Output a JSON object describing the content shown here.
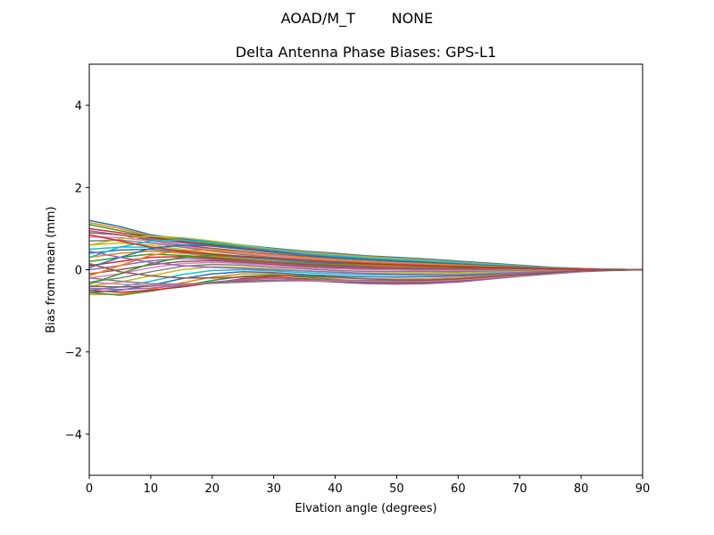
{
  "suptitle": "AOAD/M_T        NONE",
  "chart_data": {
    "type": "line",
    "title": "Delta Antenna Phase Biases: GPS-L1",
    "xlabel": "Elvation angle (degrees)",
    "ylabel": "Bias from mean (mm)",
    "xlim": [
      0,
      90
    ],
    "ylim": [
      -5,
      5
    ],
    "xticks": [
      0,
      10,
      20,
      30,
      40,
      50,
      60,
      70,
      80,
      90
    ],
    "yticks": [
      -4,
      -2,
      0,
      2,
      4
    ],
    "grid": false,
    "legend": "none",
    "x": [
      0,
      5,
      10,
      15,
      20,
      25,
      30,
      35,
      40,
      45,
      50,
      55,
      60,
      65,
      70,
      75,
      80,
      85,
      90
    ],
    "colors": [
      "#1f77b4",
      "#ff7f0e",
      "#2ca02c",
      "#d62728",
      "#9467bd",
      "#8c564b",
      "#e377c2",
      "#7f7f7f",
      "#bcbd22",
      "#17becf"
    ],
    "series": [
      {
        "values": [
          1.2,
          1.05,
          0.85,
          0.75,
          0.68,
          0.6,
          0.52,
          0.45,
          0.4,
          0.34,
          0.3,
          0.26,
          0.21,
          0.16,
          0.11,
          0.06,
          0.03,
          0.01,
          0.0
        ]
      },
      {
        "values": [
          1.15,
          1.0,
          0.82,
          0.72,
          0.65,
          0.57,
          0.5,
          0.43,
          0.38,
          0.32,
          0.28,
          0.24,
          0.19,
          0.14,
          0.1,
          0.05,
          0.03,
          0.01,
          0.0
        ]
      },
      {
        "values": [
          1.1,
          0.95,
          0.8,
          0.7,
          0.62,
          0.55,
          0.48,
          0.41,
          0.36,
          0.3,
          0.26,
          0.22,
          0.18,
          0.13,
          0.09,
          0.05,
          0.02,
          0.01,
          0.0
        ]
      },
      {
        "values": [
          1.0,
          0.9,
          0.78,
          0.68,
          0.6,
          0.52,
          0.45,
          0.39,
          0.34,
          0.29,
          0.25,
          0.21,
          0.17,
          0.12,
          0.08,
          0.04,
          0.02,
          0.01,
          0.0
        ]
      },
      {
        "values": [
          0.95,
          0.85,
          0.75,
          0.65,
          0.57,
          0.5,
          0.43,
          0.37,
          0.32,
          0.27,
          0.23,
          0.19,
          0.15,
          0.11,
          0.07,
          0.04,
          0.02,
          0.0,
          0.0
        ]
      },
      {
        "values": [
          0.9,
          0.85,
          0.72,
          0.6,
          0.52,
          0.45,
          0.38,
          0.32,
          0.28,
          0.24,
          0.2,
          0.16,
          0.13,
          0.09,
          0.06,
          0.03,
          0.01,
          0.0,
          0.0
        ]
      },
      {
        "values": [
          0.8,
          0.78,
          0.7,
          0.58,
          0.48,
          0.4,
          0.34,
          0.28,
          0.24,
          0.2,
          0.17,
          0.14,
          0.11,
          0.08,
          0.05,
          0.03,
          0.01,
          0.0,
          0.0
        ]
      },
      {
        "values": [
          0.7,
          0.72,
          0.65,
          0.55,
          0.45,
          0.37,
          0.3,
          0.25,
          0.21,
          0.18,
          0.15,
          0.12,
          0.1,
          0.07,
          0.05,
          0.02,
          0.01,
          0.0,
          0.0
        ]
      },
      {
        "values": [
          0.6,
          0.65,
          0.6,
          0.5,
          0.4,
          0.33,
          0.27,
          0.22,
          0.18,
          0.15,
          0.12,
          0.1,
          0.08,
          0.06,
          0.04,
          0.02,
          0.01,
          0.0,
          0.0
        ]
      },
      {
        "values": [
          0.5,
          0.55,
          0.55,
          0.46,
          0.37,
          0.3,
          0.24,
          0.19,
          0.16,
          0.13,
          0.1,
          0.08,
          0.07,
          0.05,
          0.03,
          0.02,
          0.01,
          0.0,
          0.0
        ]
      },
      {
        "values": [
          0.4,
          0.48,
          0.5,
          0.42,
          0.34,
          0.27,
          0.21,
          0.17,
          0.14,
          0.11,
          0.09,
          0.07,
          0.05,
          0.04,
          0.03,
          0.01,
          0.01,
          0.0,
          0.0
        ]
      },
      {
        "values": [
          0.3,
          0.4,
          0.45,
          0.4,
          0.33,
          0.26,
          0.2,
          0.15,
          0.12,
          0.1,
          0.08,
          0.06,
          0.05,
          0.03,
          0.02,
          0.01,
          0.0,
          0.0,
          0.0
        ]
      },
      {
        "values": [
          0.2,
          0.3,
          0.38,
          0.35,
          0.3,
          0.24,
          0.18,
          0.14,
          0.11,
          0.08,
          0.06,
          0.05,
          0.04,
          0.03,
          0.02,
          0.01,
          0.0,
          0.0,
          0.0
        ]
      },
      {
        "values": [
          0.1,
          0.2,
          0.3,
          0.32,
          0.28,
          0.22,
          0.17,
          0.12,
          0.09,
          0.07,
          0.05,
          0.04,
          0.03,
          0.02,
          0.01,
          0.01,
          0.0,
          0.0,
          0.0
        ]
      },
      {
        "values": [
          0.0,
          0.1,
          0.22,
          0.27,
          0.25,
          0.2,
          0.15,
          0.1,
          0.07,
          0.05,
          0.04,
          0.03,
          0.02,
          0.01,
          0.01,
          0.0,
          0.0,
          0.0,
          0.0
        ]
      },
      {
        "values": [
          -0.1,
          0.0,
          0.12,
          0.2,
          0.22,
          0.18,
          0.12,
          0.08,
          0.05,
          0.03,
          0.02,
          0.01,
          0.01,
          0.0,
          0.0,
          0.0,
          0.0,
          0.0,
          0.0
        ]
      },
      {
        "values": [
          -0.2,
          -0.1,
          0.05,
          0.15,
          0.18,
          0.15,
          0.1,
          0.05,
          0.02,
          0.0,
          -0.01,
          -0.02,
          -0.02,
          -0.02,
          -0.01,
          -0.01,
          0.0,
          0.0,
          0.0
        ]
      },
      {
        "values": [
          -0.3,
          -0.2,
          -0.05,
          0.08,
          0.13,
          0.11,
          0.06,
          0.02,
          -0.02,
          -0.04,
          -0.05,
          -0.05,
          -0.05,
          -0.04,
          -0.03,
          -0.02,
          -0.01,
          0.0,
          0.0
        ]
      },
      {
        "values": [
          -0.4,
          -0.3,
          -0.15,
          0.0,
          0.07,
          0.06,
          0.02,
          -0.03,
          -0.06,
          -0.08,
          -0.09,
          -0.09,
          -0.08,
          -0.06,
          -0.05,
          -0.03,
          -0.01,
          0.0,
          0.0
        ]
      },
      {
        "values": [
          -0.5,
          -0.42,
          -0.28,
          -0.12,
          -0.02,
          0.0,
          -0.03,
          -0.07,
          -0.1,
          -0.12,
          -0.13,
          -0.13,
          -0.12,
          -0.09,
          -0.07,
          -0.04,
          -0.02,
          -0.01,
          0.0
        ]
      },
      {
        "values": [
          -0.55,
          -0.5,
          -0.38,
          -0.22,
          -0.1,
          -0.05,
          -0.07,
          -0.12,
          -0.15,
          -0.17,
          -0.18,
          -0.17,
          -0.15,
          -0.12,
          -0.09,
          -0.05,
          -0.02,
          -0.01,
          0.0
        ]
      },
      {
        "values": [
          -0.6,
          -0.6,
          -0.48,
          -0.32,
          -0.18,
          -0.1,
          -0.1,
          -0.15,
          -0.2,
          -0.22,
          -0.23,
          -0.22,
          -0.19,
          -0.15,
          -0.11,
          -0.07,
          -0.03,
          -0.01,
          0.0
        ]
      },
      {
        "values": [
          -0.55,
          -0.62,
          -0.52,
          -0.4,
          -0.26,
          -0.16,
          -0.13,
          -0.18,
          -0.24,
          -0.28,
          -0.3,
          -0.28,
          -0.24,
          -0.19,
          -0.13,
          -0.08,
          -0.04,
          -0.01,
          0.0
        ]
      },
      {
        "values": [
          -0.5,
          -0.55,
          -0.5,
          -0.42,
          -0.32,
          -0.22,
          -0.18,
          -0.22,
          -0.27,
          -0.32,
          -0.34,
          -0.33,
          -0.28,
          -0.22,
          -0.15,
          -0.09,
          -0.04,
          -0.01,
          0.0
        ]
      },
      {
        "values": [
          -0.45,
          -0.48,
          -0.45,
          -0.38,
          -0.3,
          -0.25,
          -0.22,
          -0.25,
          -0.3,
          -0.34,
          -0.35,
          -0.34,
          -0.3,
          -0.23,
          -0.16,
          -0.1,
          -0.05,
          -0.02,
          0.0
        ]
      },
      {
        "values": [
          -0.4,
          -0.42,
          -0.4,
          -0.35,
          -0.32,
          -0.28,
          -0.26,
          -0.27,
          -0.29,
          -0.31,
          -0.32,
          -0.31,
          -0.27,
          -0.21,
          -0.15,
          -0.09,
          -0.04,
          -0.01,
          0.0
        ]
      },
      {
        "values": [
          -0.3,
          -0.35,
          -0.38,
          -0.36,
          -0.33,
          -0.3,
          -0.28,
          -0.27,
          -0.27,
          -0.28,
          -0.29,
          -0.28,
          -0.25,
          -0.2,
          -0.14,
          -0.08,
          -0.04,
          -0.01,
          0.0
        ]
      },
      {
        "values": [
          -0.2,
          -0.28,
          -0.34,
          -0.35,
          -0.33,
          -0.3,
          -0.27,
          -0.25,
          -0.25,
          -0.26,
          -0.27,
          -0.26,
          -0.23,
          -0.18,
          -0.13,
          -0.08,
          -0.03,
          -0.01,
          0.0
        ]
      },
      {
        "values": [
          0.6,
          0.75,
          0.82,
          0.78,
          0.7,
          0.6,
          0.5,
          0.42,
          0.36,
          0.31,
          0.27,
          0.23,
          0.18,
          0.13,
          0.09,
          0.05,
          0.02,
          0.01,
          0.0
        ]
      },
      {
        "values": [
          0.3,
          0.55,
          0.7,
          0.72,
          0.66,
          0.57,
          0.48,
          0.4,
          0.34,
          0.29,
          0.25,
          0.21,
          0.17,
          0.12,
          0.08,
          0.04,
          0.02,
          0.01,
          0.0
        ]
      },
      {
        "values": [
          0.05,
          0.3,
          0.52,
          0.6,
          0.58,
          0.5,
          0.42,
          0.35,
          0.3,
          0.25,
          0.21,
          0.18,
          0.14,
          0.1,
          0.07,
          0.04,
          0.02,
          0.0,
          0.0
        ]
      },
      {
        "values": [
          -0.15,
          0.1,
          0.35,
          0.47,
          0.48,
          0.43,
          0.36,
          0.3,
          0.25,
          0.2,
          0.17,
          0.14,
          0.11,
          0.08,
          0.05,
          0.03,
          0.01,
          0.0,
          0.0
        ]
      },
      {
        "values": [
          -0.35,
          -0.1,
          0.15,
          0.3,
          0.35,
          0.33,
          0.28,
          0.22,
          0.18,
          0.14,
          0.11,
          0.09,
          0.07,
          0.05,
          0.03,
          0.02,
          0.01,
          0.0,
          0.0
        ]
      },
      {
        "values": [
          0.85,
          0.7,
          0.55,
          0.45,
          0.38,
          0.32,
          0.27,
          0.22,
          0.18,
          0.15,
          0.12,
          0.1,
          0.08,
          0.06,
          0.04,
          0.02,
          0.01,
          0.0,
          0.0
        ]
      },
      {
        "values": [
          0.45,
          0.3,
          0.18,
          0.1,
          0.06,
          0.03,
          0.0,
          -0.03,
          -0.06,
          -0.09,
          -0.11,
          -0.12,
          -0.12,
          -0.1,
          -0.07,
          -0.04,
          -0.02,
          -0.01,
          0.0
        ]
      },
      {
        "values": [
          0.15,
          -0.05,
          -0.15,
          -0.2,
          -0.2,
          -0.18,
          -0.15,
          -0.15,
          -0.18,
          -0.22,
          -0.25,
          -0.25,
          -0.22,
          -0.17,
          -0.12,
          -0.07,
          -0.03,
          -0.01,
          0.0
        ]
      }
    ]
  }
}
